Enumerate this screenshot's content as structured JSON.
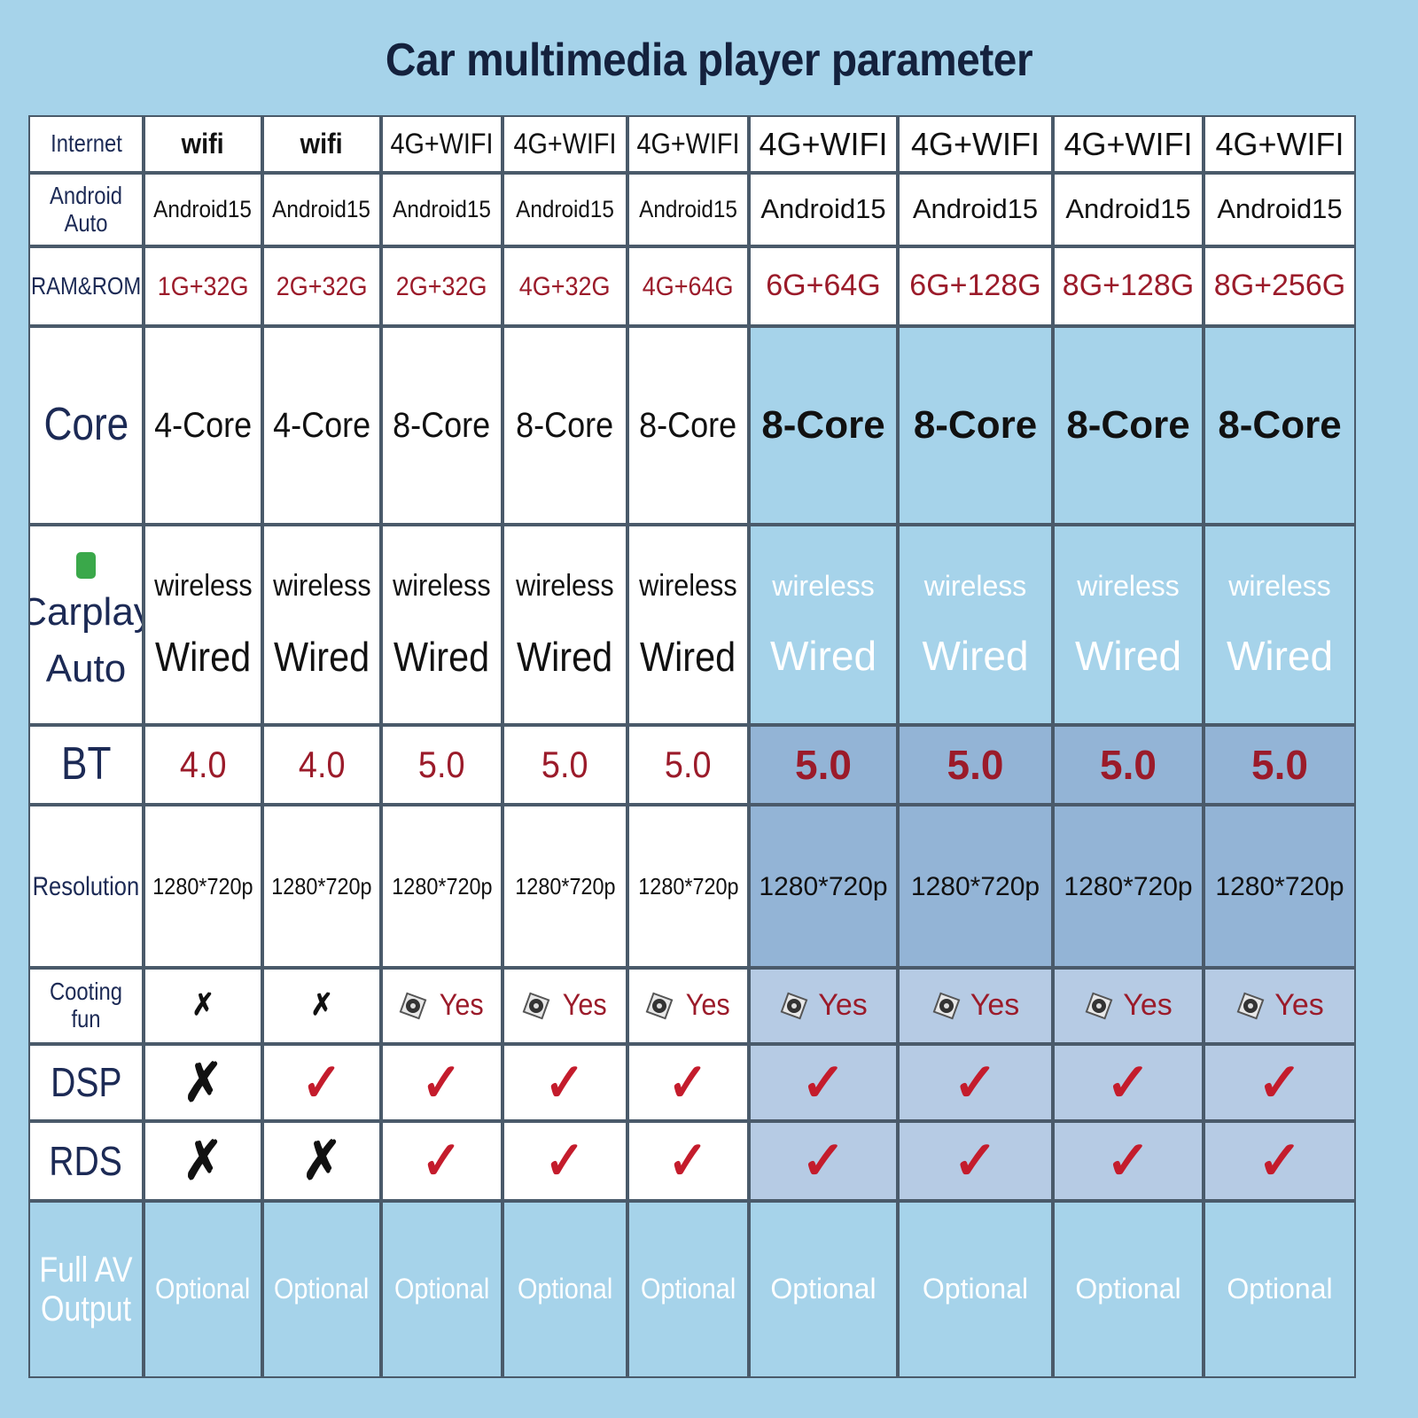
{
  "title": "Car multimedia player parameter",
  "mark_colors": {
    "✓": "#c41c2c",
    "✗": "#111111"
  },
  "table": {
    "rows": [
      {
        "label": "Internet",
        "cells": [
          "wifi",
          "wifi",
          "4G+WIFI",
          "4G+WIFI",
          "4G+WIFI",
          "4G+WIFI",
          "4G+WIFI",
          "4G+WIFI",
          "4G+WIFI"
        ]
      },
      {
        "label": "Android Auto",
        "cells": [
          "Android15",
          "Android15",
          "Android15",
          "Android15",
          "Android15",
          "Android15",
          "Android15",
          "Android15",
          "Android15"
        ]
      },
      {
        "label": "RAM&ROM",
        "cells": [
          "1G+32G",
          "2G+32G",
          "2G+32G",
          "4G+32G",
          "4G+64G",
          "6G+64G",
          "6G+128G",
          "8G+128G",
          "8G+256G"
        ]
      },
      {
        "label": "Core",
        "cells": [
          "4-Core",
          "4-Core",
          "8-Core",
          "8-Core",
          "8-Core",
          "8-Core",
          "8-Core",
          "8-Core",
          "8-Core"
        ]
      },
      {
        "label": [
          "Carplay",
          "Auto"
        ],
        "cells": [
          [
            "wireless",
            "Wired"
          ],
          [
            "wireless",
            "Wired"
          ],
          [
            "wireless",
            "Wired"
          ],
          [
            "wireless",
            "Wired"
          ],
          [
            "wireless",
            "Wired"
          ],
          [
            "wireless",
            "Wired"
          ],
          [
            "wireless",
            "Wired"
          ],
          [
            "wireless",
            "Wired"
          ],
          [
            "wireless",
            "Wired"
          ]
        ]
      },
      {
        "label": "BT",
        "cells": [
          "4.0",
          "4.0",
          "5.0",
          "5.0",
          "5.0",
          "5.0",
          "5.0",
          "5.0",
          "5.0"
        ]
      },
      {
        "label": "Resolution",
        "cells": [
          "1280*720p",
          "1280*720p",
          "1280*720p",
          "1280*720p",
          "1280*720p",
          "1280*720p",
          "1280*720p",
          "1280*720p",
          "1280*720p"
        ]
      },
      {
        "label": "Cooting fun",
        "cells": [
          "✗",
          "✗",
          "Yes",
          "Yes",
          "Yes",
          "Yes",
          "Yes",
          "Yes",
          "Yes"
        ]
      },
      {
        "label": "DSP",
        "cells": [
          "✗",
          "✓",
          "✓",
          "✓",
          "✓",
          "✓",
          "✓",
          "✓",
          "✓"
        ]
      },
      {
        "label": "RDS",
        "cells": [
          "✗",
          "✗",
          "✓",
          "✓",
          "✓",
          "✓",
          "✓",
          "✓",
          "✓"
        ]
      },
      {
        "label": "Full AV Output",
        "cells": [
          "Optional",
          "Optional",
          "Optional",
          "Optional",
          "Optional",
          "Optional",
          "Optional",
          "Optional",
          "Optional"
        ]
      }
    ]
  }
}
